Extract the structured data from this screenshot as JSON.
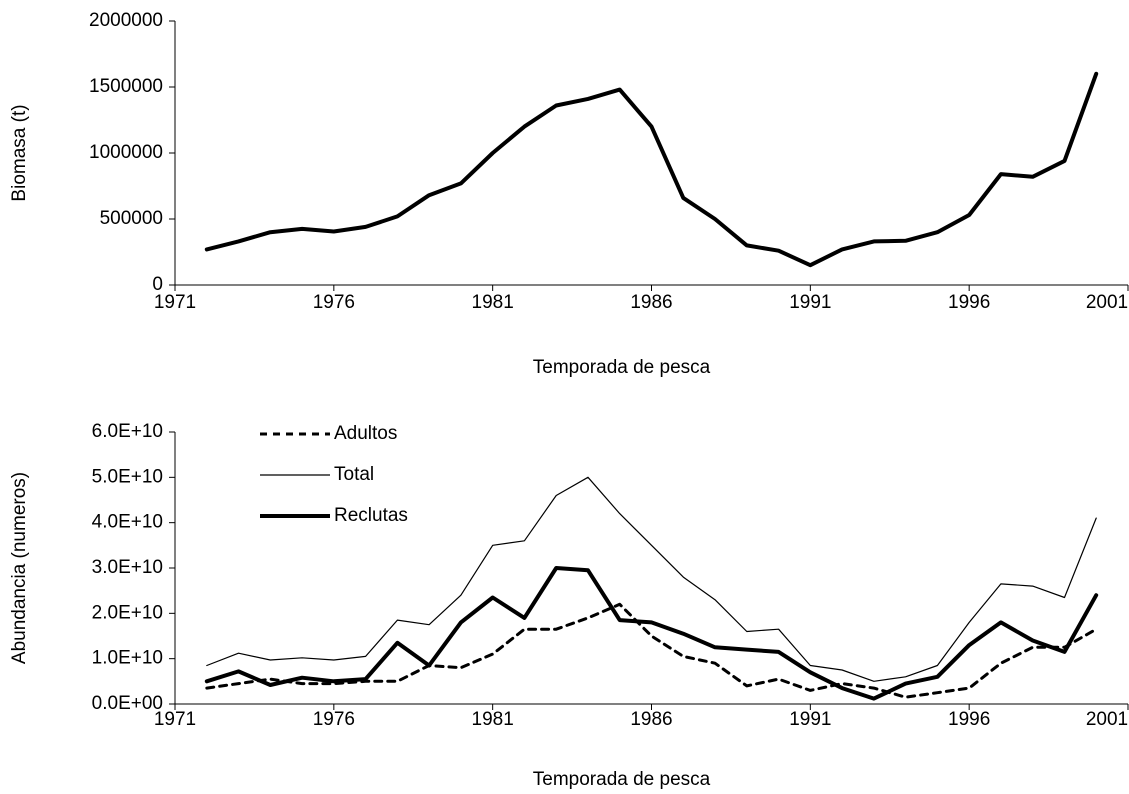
{
  "chart_data": [
    {
      "type": "line",
      "xlabel": "Temporada de pesca",
      "ylabel": "Biomasa (t)",
      "x": [
        1972,
        1973,
        1974,
        1975,
        1976,
        1977,
        1978,
        1979,
        1980,
        1981,
        1982,
        1983,
        1984,
        1985,
        1986,
        1987,
        1988,
        1989,
        1990,
        1991,
        1992,
        1993,
        1994,
        1995,
        1996,
        1997,
        1998,
        1999,
        2000
      ],
      "values": [
        270000,
        330000,
        400000,
        425000,
        405000,
        440000,
        520000,
        680000,
        770000,
        1000000,
        1200000,
        1360000,
        1410000,
        1480000,
        1200000,
        660000,
        500000,
        300000,
        260000,
        150000,
        270000,
        330000,
        335000,
        400000,
        530000,
        840000,
        820000,
        940000,
        1600000
      ],
      "color": "#000000",
      "style": "thick",
      "xlim": [
        1971,
        2001
      ],
      "xticks": [
        1971,
        1976,
        1981,
        1986,
        1991,
        1996,
        2001
      ],
      "ylim": [
        0,
        2000000
      ],
      "yticks": [
        0,
        500000,
        1000000,
        1500000,
        2000000
      ]
    },
    {
      "type": "line",
      "xlabel": "Temporada de pesca",
      "ylabel": "Abundancia (numeros)",
      "x": [
        1972,
        1973,
        1974,
        1975,
        1976,
        1977,
        1978,
        1979,
        1980,
        1981,
        1982,
        1983,
        1984,
        1985,
        1986,
        1987,
        1988,
        1989,
        1990,
        1991,
        1992,
        1993,
        1994,
        1995,
        1996,
        1997,
        1998,
        1999,
        2000
      ],
      "series": [
        {
          "name": "Adultos",
          "color": "#000000",
          "style": "dashed",
          "values": [
            3500000000.0,
            4500000000.0,
            5500000000.0,
            4500000000.0,
            4500000000.0,
            5000000000.0,
            5000000000.0,
            8500000000.0,
            8000000000.0,
            11000000000.0,
            16500000000.0,
            16500000000.0,
            19000000000.0,
            22000000000.0,
            15000000000.0,
            10500000000.0,
            9000000000.0,
            4000000000.0,
            5500000000.0,
            3000000000.0,
            4500000000.0,
            3500000000.0,
            1500000000.0,
            2500000000.0,
            3500000000.0,
            9000000000.0,
            12500000000.0,
            12500000000.0,
            16500000000.0
          ]
        },
        {
          "name": "Total",
          "color": "#000000",
          "style": "thin",
          "values": [
            8500000000.0,
            11200000000.0,
            9700000000.0,
            10200000000.0,
            9700000000.0,
            10500000000.0,
            18500000000.0,
            17500000000.0,
            24000000000.0,
            35000000000.0,
            36000000000.0,
            46000000000.0,
            50000000000.0,
            42000000000.0,
            35000000000.0,
            28000000000.0,
            23000000000.0,
            16000000000.0,
            16500000000.0,
            8500000000.0,
            7500000000.0,
            5000000000.0,
            6000000000.0,
            8500000000.0,
            18000000000.0,
            26500000000.0,
            26000000000.0,
            23500000000.0,
            41000000000.0
          ]
        },
        {
          "name": "Reclutas",
          "color": "#000000",
          "style": "thick",
          "values": [
            5000000000.0,
            7200000000.0,
            4200000000.0,
            5800000000.0,
            5000000000.0,
            5500000000.0,
            13500000000.0,
            8500000000.0,
            18000000000.0,
            23500000000.0,
            19000000000.0,
            30000000000.0,
            29500000000.0,
            18500000000.0,
            18000000000.0,
            15500000000.0,
            12500000000.0,
            12000000000.0,
            11500000000.0,
            7000000000.0,
            3500000000.0,
            1200000000.0,
            4500000000.0,
            6000000000.0,
            13000000000.0,
            18000000000.0,
            14000000000.0,
            11500000000.0,
            24000000000.0
          ]
        }
      ],
      "legend": "upper-left",
      "xlim": [
        1971,
        2001
      ],
      "xticks": [
        1971,
        1976,
        1981,
        1986,
        1991,
        1996,
        2001
      ],
      "ylim": [
        0,
        60000000000.0
      ],
      "yticks": [
        {
          "value": 0,
          "label": "0.0E+00"
        },
        {
          "value": 10000000000.0,
          "label": "1.0E+10"
        },
        {
          "value": 20000000000.0,
          "label": "2.0E+10"
        },
        {
          "value": 30000000000.0,
          "label": "3.0E+10"
        },
        {
          "value": 40000000000.0,
          "label": "4.0E+10"
        },
        {
          "value": 50000000000.0,
          "label": "5.0E+10"
        },
        {
          "value": 60000000000.0,
          "label": "6.0E+10"
        }
      ]
    }
  ]
}
